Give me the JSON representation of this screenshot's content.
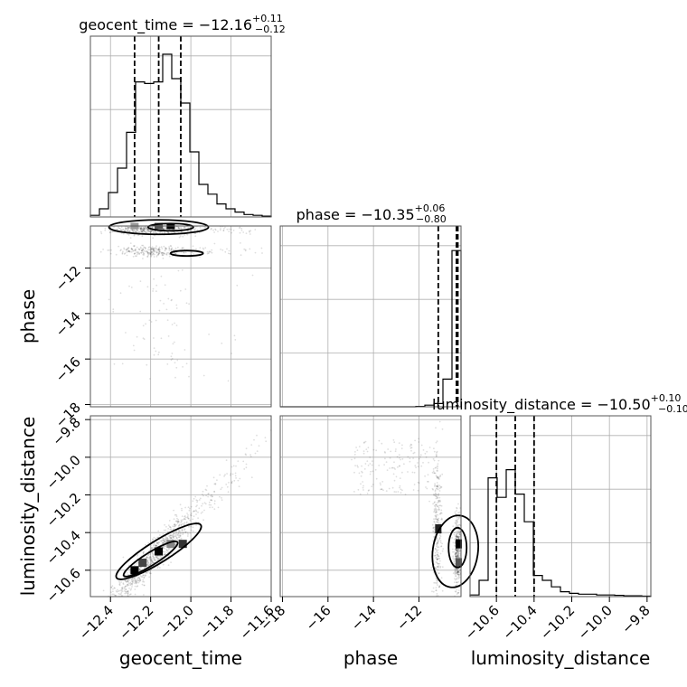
{
  "chart_data": {
    "type": "corner",
    "parameters": [
      {
        "name": "geocent_time",
        "range": [
          -12.5,
          -11.6
        ],
        "ticks": [
          -12.4,
          -12.2,
          -12.0,
          -11.8,
          -11.6
        ],
        "tick_labels": [
          "−12.4",
          "−12.2",
          "−12.0",
          "−11.8",
          "−11.6"
        ]
      },
      {
        "name": "phase",
        "range": [
          -18.1,
          -10.15
        ],
        "ticks": [
          -18,
          -16,
          -14,
          -12
        ],
        "tick_labels": [
          "−18",
          "−16",
          "−14",
          "−12"
        ]
      },
      {
        "name": "luminosity_distance",
        "range": [
          -10.74,
          -9.78
        ],
        "ticks": [
          -10.6,
          -10.4,
          -10.2,
          -10.0,
          -9.8
        ],
        "tick_labels": [
          "−10.6",
          "−10.4",
          "−10.2",
          "−10.0",
          "−9.8"
        ]
      }
    ],
    "titles": [
      {
        "label": "geocent_time = −12.16",
        "sup": "+0.11",
        "sub": "−0.12"
      },
      {
        "label": "phase = −10.35",
        "sup": "+0.06",
        "sub": "−0.80"
      },
      {
        "label": "luminosity_distance = −10.50",
        "sup": "+0.10",
        "sub": "−0.10"
      }
    ],
    "quantiles": {
      "geocent_time": [
        -12.28,
        -12.16,
        -12.05
      ],
      "phase": [
        -11.15,
        -10.35,
        -10.29
      ],
      "luminosity_distance": [
        -10.6,
        -10.5,
        -10.4
      ]
    },
    "histograms": {
      "geocent_time": {
        "edges_start": -12.5,
        "bin_width": 0.045,
        "counts": [
          0.01,
          0.05,
          0.15,
          0.3,
          0.52,
          0.83,
          0.82,
          0.83,
          1.0,
          0.85,
          0.7,
          0.4,
          0.2,
          0.14,
          0.08,
          0.05,
          0.03,
          0.015,
          0.01,
          0.005
        ]
      },
      "phase": {
        "edges_start": -18.1,
        "bin_width": 0.3975,
        "counts": [
          0,
          0,
          0,
          0,
          0,
          0,
          0,
          0,
          0,
          0,
          0,
          0,
          0,
          0,
          0,
          0.002,
          0.01,
          0.02,
          0.17,
          0.96
        ]
      },
      "luminosity_distance": {
        "edges_start": -10.74,
        "bin_width": 0.048,
        "counts": [
          0.01,
          0.1,
          0.73,
          0.61,
          0.78,
          0.63,
          0.46,
          0.13,
          0.1,
          0.06,
          0.03,
          0.02,
          0.015,
          0.015,
          0.01,
          0.01,
          0.008,
          0.005,
          0.005,
          0.003
        ]
      }
    },
    "grid": true
  }
}
